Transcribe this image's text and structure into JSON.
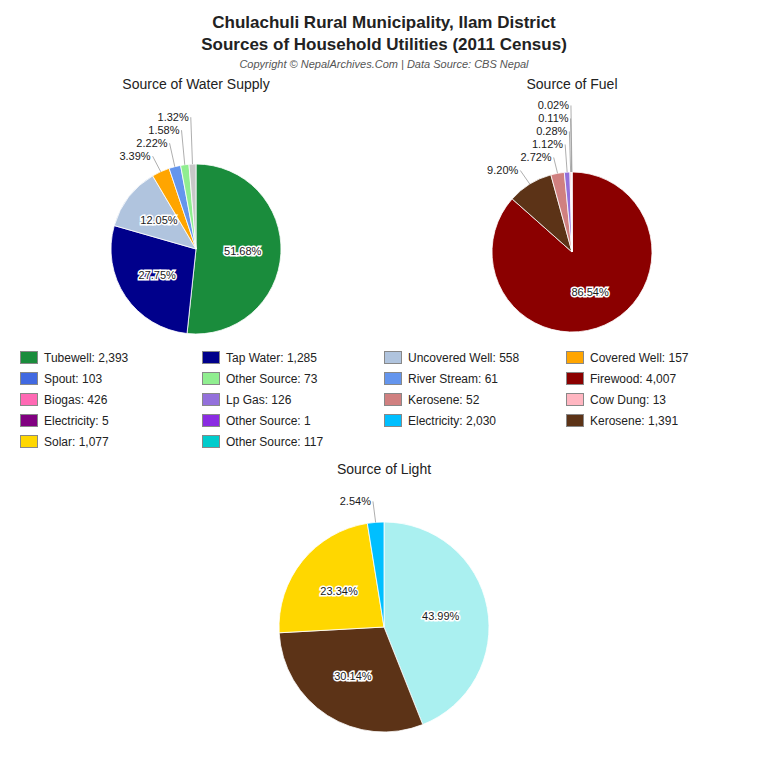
{
  "title": "Chulachuli Rural Municipality, Ilam District",
  "subtitle": "Sources of Household Utilities (2011 Census)",
  "annotations": [
    "Copyright © NepalArchives.Com | Data Source: CBS Nepal"
  ],
  "legend_entries": [
    {
      "name": "Tubewell: 2,393",
      "color": "#1a8c3c"
    },
    {
      "name": "Tap Water: 1,285",
      "color": "#00008b"
    },
    {
      "name": "Uncovered Well: 558",
      "color": "#b0c4de"
    },
    {
      "name": "Covered Well: 157",
      "color": "#ffa500"
    },
    {
      "name": "Spout: 103",
      "color": "#4169e1"
    },
    {
      "name": "Other Source: 73",
      "color": "#90ee90"
    },
    {
      "name": "River Stream: 61",
      "color": "#6495ed"
    },
    {
      "name": "Firewood: 4,007",
      "color": "#8b0000"
    },
    {
      "name": "Biogas: 426",
      "color": "#ff69b4"
    },
    {
      "name": "Lp Gas: 126",
      "color": "#9370db"
    },
    {
      "name": "Kerosene: 52",
      "color": "#d08080"
    },
    {
      "name": "Cow Dung: 13",
      "color": "#ffb6c1"
    },
    {
      "name": "Electricity: 5",
      "color": "#800080"
    },
    {
      "name": "Other Source: 1",
      "color": "#8a2be2"
    },
    {
      "name": "Electricity: 2,030",
      "color": "#00bfff"
    },
    {
      "name": "Kerosene: 1,391",
      "color": "#5c3317"
    },
    {
      "name": "Solar: 1,077",
      "color": "#ffd700"
    },
    {
      "name": "Other Source: 117",
      "color": "#00cccc"
    }
  ],
  "chart_data": [
    {
      "type": "pie",
      "title": "Source of Water Supply",
      "values": [
        51.68,
        27.75,
        12.05,
        3.39,
        2.22,
        1.58,
        1.32
      ],
      "value_labels": [
        "51.68%",
        "27.75%",
        "12.05%",
        "3.39%",
        "2.22%",
        "1.58%",
        "1.32%"
      ],
      "colors": [
        "#1a8c3c",
        "#00008b",
        "#b0c4de",
        "#ffa500",
        "#6495ed",
        "#90ee90",
        "#c8c8c8"
      ],
      "data_labels": true
    },
    {
      "type": "pie",
      "title": "Source of Fuel",
      "values": [
        86.54,
        9.2,
        2.72,
        1.12,
        0.28,
        0.11,
        0.02
      ],
      "value_labels": [
        "86.54%",
        "9.20%",
        "2.72%",
        "1.12%",
        "0.28%",
        "0.11%",
        "0.02%"
      ],
      "colors": [
        "#8b0000",
        "#5c3317",
        "#d08080",
        "#9370db",
        "#ffb6c1",
        "#4b0082",
        "#e0e0e0"
      ],
      "data_labels": true
    },
    {
      "type": "pie",
      "title": "Source of Light",
      "values": [
        43.99,
        30.14,
        23.34,
        2.54
      ],
      "value_labels": [
        "43.99%",
        "30.14%",
        "23.34%",
        "2.54%"
      ],
      "colors": [
        "#aaf0f0",
        "#5c3317",
        "#ffd700",
        "#00bfff"
      ],
      "data_labels": true
    }
  ]
}
